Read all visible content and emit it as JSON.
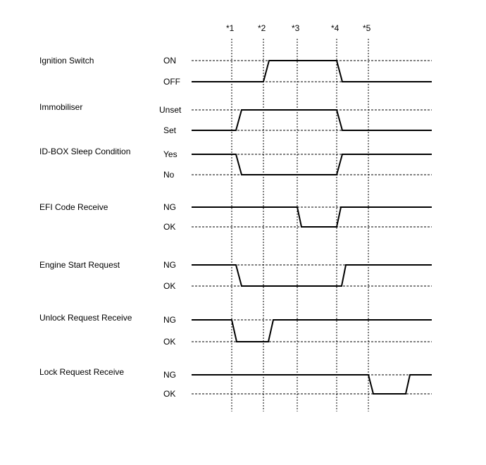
{
  "markers": [
    "*1",
    "*2",
    "*3",
    "*4",
    "*5"
  ],
  "signals": [
    {
      "name": "Ignition Switch",
      "high": "ON",
      "low": "OFF",
      "sequence": [
        "OFF",
        "ON",
        "OFF"
      ]
    },
    {
      "name": "Immobiliser",
      "high": "Unset",
      "low": "Set",
      "sequence": [
        "Set",
        "Unset",
        "Set"
      ]
    },
    {
      "name": "ID-BOX Sleep Condition",
      "high": "Yes",
      "low": "No",
      "sequence": [
        "Yes",
        "No",
        "Yes"
      ]
    },
    {
      "name": "EFI Code Receive",
      "high": "NG",
      "low": "OK",
      "sequence": [
        "NG",
        "OK",
        "NG"
      ]
    },
    {
      "name": "Engine Start Request",
      "high": "NG",
      "low": "OK",
      "sequence": [
        "NG",
        "OK",
        "NG"
      ]
    },
    {
      "name": "Unlock Request Receive",
      "high": "NG",
      "low": "OK",
      "sequence": [
        "NG",
        "OK",
        "NG"
      ]
    },
    {
      "name": "Lock Request Receive",
      "high": "NG",
      "low": "OK",
      "sequence": [
        "NG",
        "OK",
        "NG"
      ]
    }
  ]
}
